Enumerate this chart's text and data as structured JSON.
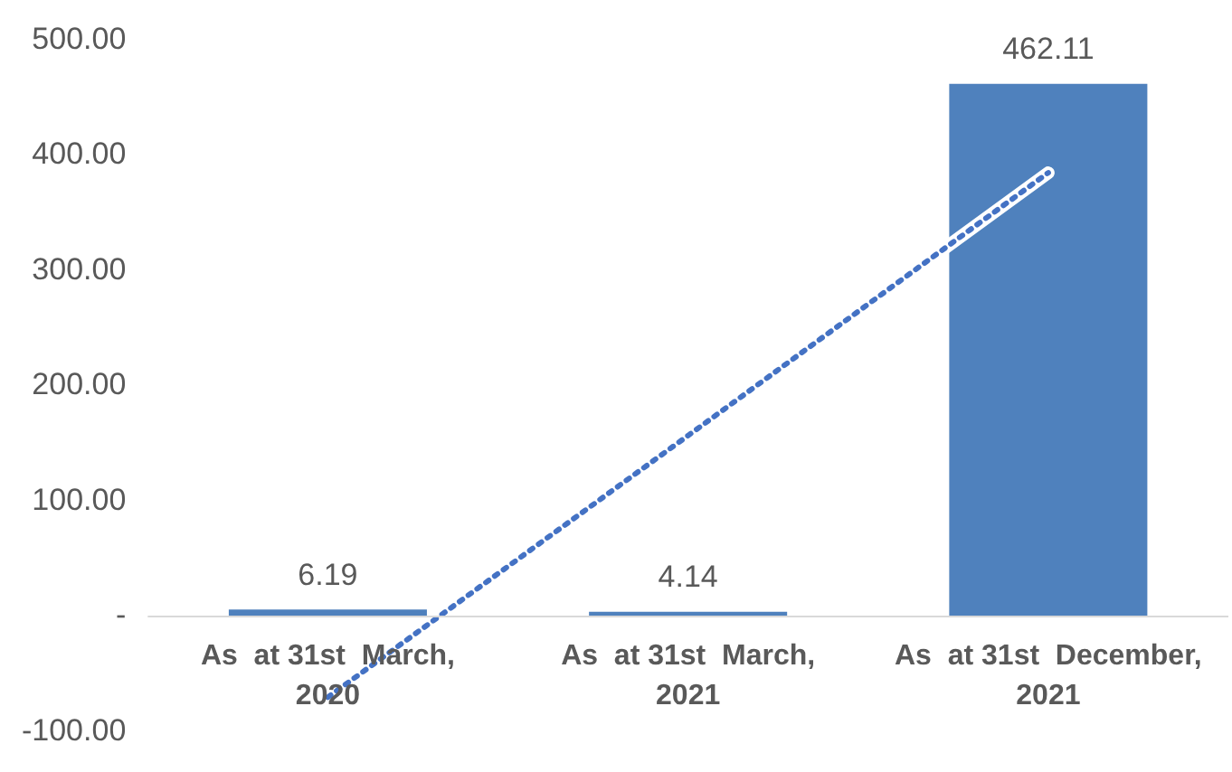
{
  "chart_data": {
    "type": "bar",
    "categories": [
      "As  at 31st  March, 2020",
      "As  at 31st  March, 2021",
      "As  at 31st  December, 2021"
    ],
    "series": [
      {
        "color": "#4f81bd",
        "values": [
          6.19,
          4.14,
          462.11
        ],
        "value_labels": [
          "6.19",
          "4.14",
          "462.11"
        ]
      },
      {
        "type": "line",
        "color": "#4472c4",
        "values": [
          -70,
          157,
          385
        ],
        "line_style": "dotted",
        "marker": "none"
      }
    ],
    "ylim": [
      -100,
      500
    ],
    "yticks": [
      {
        "value": -100,
        "label": "-100.00"
      },
      {
        "value": 0,
        "label": "-"
      },
      {
        "value": 100,
        "label": "100.00"
      },
      {
        "value": 200,
        "label": "200.00"
      },
      {
        "value": 300,
        "label": "300.00"
      },
      {
        "value": 400,
        "label": "400.00"
      },
      {
        "value": 500,
        "label": "500.00"
      }
    ],
    "grid": false,
    "legend": false
  }
}
